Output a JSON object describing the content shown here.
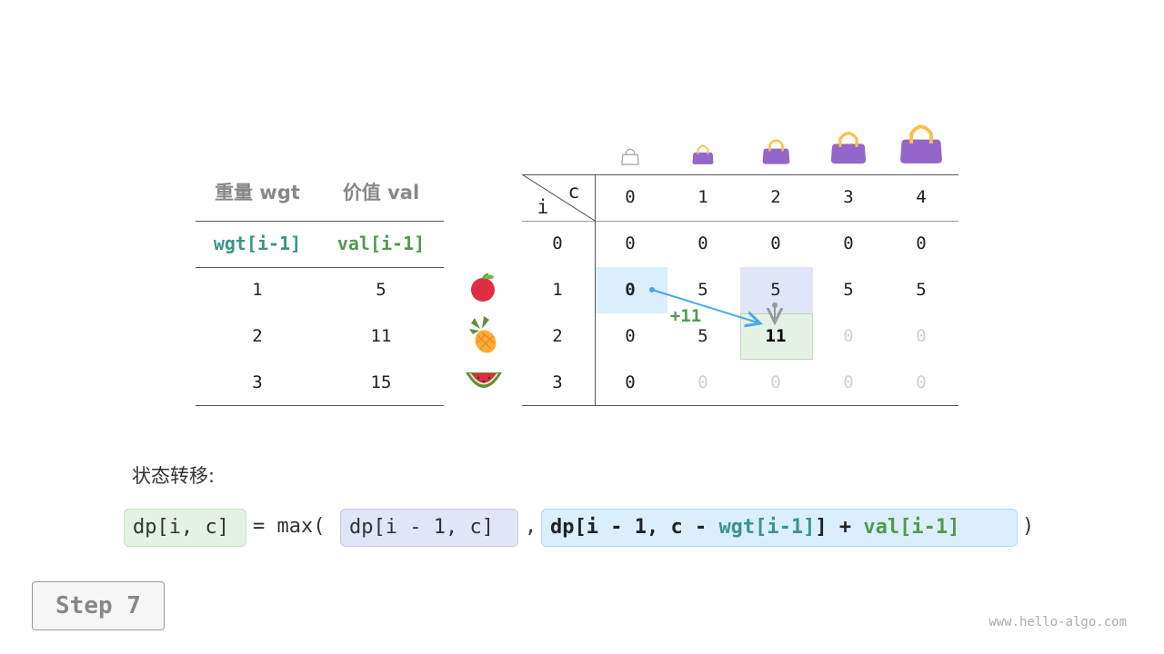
{
  "items_table": {
    "headers": [
      "重量 wgt",
      "价值 val"
    ],
    "subheaders": [
      "wgt[i-1]",
      "val[i-1]"
    ],
    "rows": [
      [
        "1",
        "5"
      ],
      [
        "2",
        "11"
      ],
      [
        "3",
        "15"
      ]
    ],
    "item_icons": [
      "apple-icon",
      "pineapple-icon",
      "watermelon-icon"
    ]
  },
  "dp_table": {
    "corner_row_label": "i",
    "corner_col_label": "c",
    "capacity_headers": [
      "0",
      "1",
      "2",
      "3",
      "4"
    ],
    "bag_icons": [
      "empty-bag-icon",
      "bag-icon",
      "bag-icon",
      "bag-icon",
      "bag-icon"
    ],
    "row_labels": [
      "0",
      "1",
      "2",
      "3"
    ],
    "rows": [
      {
        "values": [
          "0",
          "0",
          "0",
          "0",
          "0"
        ],
        "filled": [
          true,
          true,
          true,
          true,
          true
        ]
      },
      {
        "values": [
          "0",
          "5",
          "5",
          "5",
          "5"
        ],
        "filled": [
          true,
          true,
          true,
          true,
          true
        ]
      },
      {
        "values": [
          "0",
          "5",
          "11",
          "0",
          "0"
        ],
        "filled": [
          true,
          true,
          true,
          false,
          false
        ]
      },
      {
        "values": [
          "0",
          "0",
          "0",
          "0",
          "0"
        ],
        "filled": [
          true,
          false,
          false,
          false,
          false
        ]
      }
    ],
    "current_cell": [
      2,
      2
    ],
    "arrow_label": "+11"
  },
  "transition": {
    "label": "状态转移:",
    "lhs": "dp[i, c]",
    "eq": "= max(",
    "opt1": "dp[i - 1, c]",
    "comma": ",",
    "opt2_prefix": "dp[i - 1, c - ",
    "opt2_wgt": "wgt[i-1]",
    "opt2_mid": "] + ",
    "opt2_val": "val[i-1]",
    "close": ")"
  },
  "step_button": "Step 7",
  "watermark": "www.hello-algo.com",
  "colors": {
    "teal": "#3a9589",
    "green": "#4f9a4d",
    "highlight_blue": "#dbeefc",
    "highlight_purple": "#e1e5f8",
    "highlight_green": "#e5f1e4",
    "bag": "#9466c9",
    "arrow": "#4aa8e8"
  }
}
